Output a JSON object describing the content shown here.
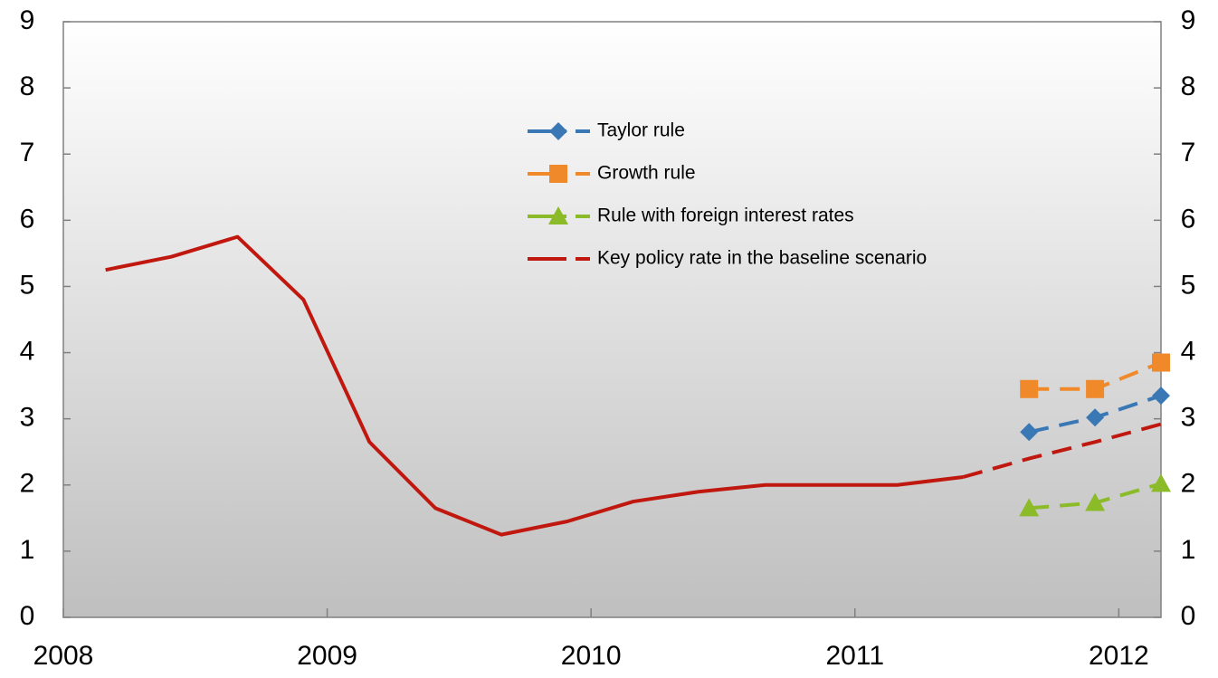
{
  "chart_data": {
    "type": "line",
    "xlim": [
      2008,
      2012.16
    ],
    "xticks": [
      2008,
      2009,
      2010,
      2011,
      2012
    ],
    "ylim": [
      0,
      9
    ],
    "yticks": [
      0,
      1,
      2,
      3,
      4,
      5,
      6,
      7,
      8,
      9
    ],
    "y2lim": [
      0,
      9
    ],
    "y2ticks": [
      0,
      1,
      2,
      3,
      4,
      5,
      6,
      7,
      8,
      9
    ],
    "series": [
      {
        "name": "Taylor rule",
        "color": "#3a78b5",
        "marker": "diamond",
        "dashed": true,
        "x": [
          2011.66,
          2011.91,
          2012.16
        ],
        "values": [
          2.8,
          3.02,
          3.35
        ]
      },
      {
        "name": "Growth rule",
        "color": "#f0892a",
        "marker": "square",
        "dashed": true,
        "x": [
          2011.66,
          2011.91,
          2012.16
        ],
        "values": [
          3.45,
          3.45,
          3.85
        ]
      },
      {
        "name": "Rule with foreign interest rates",
        "color": "#8cbb2a",
        "marker": "triangle",
        "dashed": true,
        "x": [
          2011.66,
          2011.91,
          2012.16
        ],
        "values": [
          1.65,
          1.73,
          2.02
        ]
      },
      {
        "name": "Key policy rate in the baseline scenario",
        "color": "#c0170f",
        "marker": "none",
        "dashed_from_index": 13,
        "x": [
          2008.16,
          2008.41,
          2008.66,
          2008.91,
          2009.16,
          2009.41,
          2009.66,
          2009.91,
          2010.16,
          2010.41,
          2010.66,
          2010.91,
          2011.16,
          2011.41,
          2011.66,
          2011.91,
          2012.16
        ],
        "values": [
          5.25,
          5.45,
          5.75,
          4.8,
          2.65,
          1.65,
          1.25,
          1.45,
          1.75,
          1.9,
          2.0,
          2.0,
          2.0,
          2.12,
          2.4,
          2.65,
          2.92
        ]
      }
    ]
  }
}
